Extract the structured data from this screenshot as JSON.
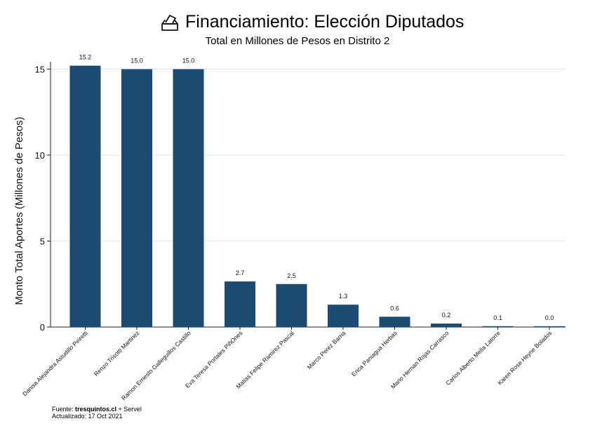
{
  "chart_data": {
    "type": "bar",
    "title": "Financiamiento: Elección Diputados",
    "subtitle": "Total en Millones de Pesos en Distrito 2",
    "ylabel": "Monto Total Aportes (Millones de Pesos)",
    "xlabel": "",
    "ylim": [
      0,
      15.6
    ],
    "yticks": [
      0,
      5,
      10,
      15
    ],
    "grid": true,
    "bar_color": "#1b4a72",
    "categories": [
      "Danisa Alejandra Astudillo Peiretti",
      "Renzo Trisotti Martinez",
      "Ramon Ernesto Galleguillos Castillo",
      "Eva Teresa Portales PiñOnes",
      "Matias Felipe Ramirez Pascal",
      "Marco Perez Barria",
      "Erica Paniagua Herbas",
      "Mario Hernan Rojas Carrasco",
      "Carlos Alberto Mella Latorre",
      "Karen Rose Heyne Bolados"
    ],
    "values": [
      15.2,
      15.0,
      15.0,
      2.65,
      2.5,
      1.3,
      0.6,
      0.2,
      0.05,
      0.04
    ],
    "data_labels": [
      "15.2",
      "15.0",
      "15.0",
      "2.7",
      "2.5",
      "1.3",
      "0.6",
      "0.2",
      "0.1",
      "0.0"
    ]
  },
  "footer": {
    "source_prefix": "Fuente: ",
    "source_site": "tresquintos.cl",
    "source_suffix": " + Servel",
    "updated": "Actualizado: 17 Oct 2021"
  },
  "icons": {
    "title_icon": "ballot-box-icon"
  }
}
